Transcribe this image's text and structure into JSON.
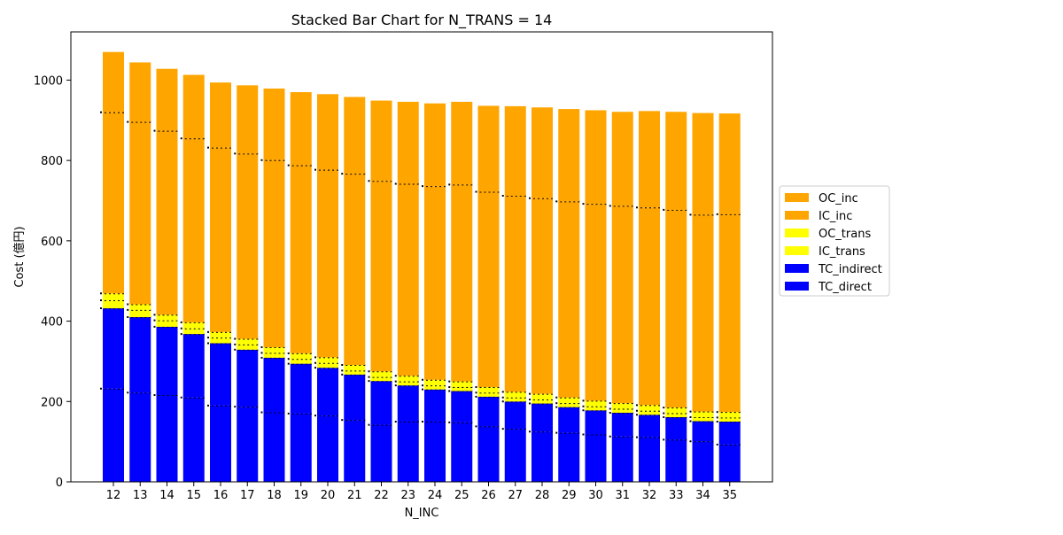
{
  "chart_data": {
    "type": "bar",
    "stacked": true,
    "title": "Stacked Bar Chart for N_TRANS = 14",
    "xlabel": "N_INC",
    "ylabel": "Cost (億円)",
    "ylim": [
      0,
      1120
    ],
    "yticks": [
      0,
      200,
      400,
      600,
      800,
      1000
    ],
    "grid": false,
    "legend_position": "right",
    "categories": [
      "12",
      "13",
      "14",
      "15",
      "16",
      "17",
      "18",
      "19",
      "20",
      "21",
      "22",
      "23",
      "24",
      "25",
      "26",
      "27",
      "28",
      "29",
      "30",
      "31",
      "32",
      "33",
      "34",
      "35"
    ],
    "series": [
      {
        "name": "TC_direct",
        "color": "#0000ff",
        "values": [
          232,
          222,
          216,
          210,
          190,
          187,
          173,
          170,
          165,
          154,
          142,
          150,
          150,
          148,
          138,
          132,
          125,
          122,
          118,
          113,
          111,
          105,
          101,
          93
        ]
      },
      {
        "name": "TC_indirect",
        "color": "#0000ff",
        "values": [
          200,
          188,
          170,
          158,
          155,
          142,
          136,
          124,
          119,
          113,
          109,
          90,
          80,
          78,
          74,
          68,
          70,
          64,
          60,
          59,
          56,
          56,
          50,
          57
        ]
      },
      {
        "name": "IC_trans",
        "color": "#ffff00",
        "values": [
          20,
          18,
          16,
          14,
          14,
          13,
          12,
          12,
          12,
          10,
          10,
          10,
          10,
          10,
          10,
          10,
          10,
          10,
          10,
          10,
          10,
          10,
          10,
          10
        ]
      },
      {
        "name": "OC_trans",
        "color": "#ffff00",
        "values": [
          17,
          14,
          14,
          15,
          14,
          14,
          14,
          14,
          14,
          14,
          14,
          14,
          14,
          14,
          14,
          14,
          14,
          14,
          14,
          14,
          14,
          14,
          14,
          14
        ]
      },
      {
        "name": "IC_inc",
        "color": "#ffa500",
        "values": [
          451,
          454,
          458,
          458,
          459,
          461,
          466,
          468,
          467,
          476,
          474,
          478,
          482,
          490,
          486,
          488,
          487,
          488,
          490,
          491,
          492,
          492,
          490,
          492
        ]
      },
      {
        "name": "OC_inc",
        "color": "#ffa500",
        "values": [
          150,
          148,
          154,
          158,
          162,
          170,
          178,
          182,
          188,
          191,
          200,
          204,
          206,
          206,
          214,
          223,
          226,
          230,
          233,
          234,
          240,
          244,
          253,
          251
        ]
      }
    ],
    "legend_order": [
      "OC_inc",
      "IC_inc",
      "OC_trans",
      "IC_trans",
      "TC_indirect",
      "TC_direct"
    ]
  }
}
